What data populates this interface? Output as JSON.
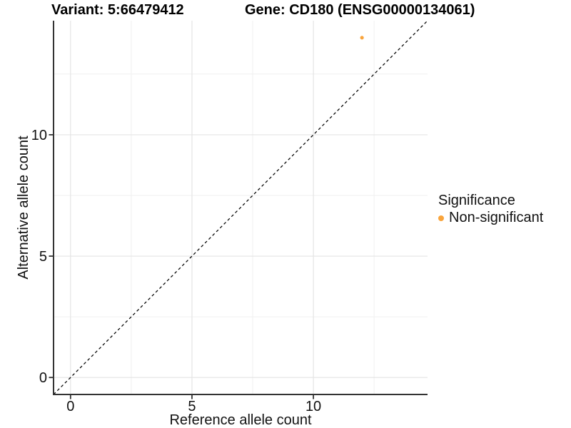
{
  "chart_data": {
    "type": "scatter",
    "title_left": "Variant: 5:66479412",
    "title_right": "Gene: CD180 (ENSG00000134061)",
    "xlabel": "Reference allele count",
    "ylabel": "Alternative allele count",
    "xlim": [
      -0.7,
      14.7
    ],
    "ylim": [
      -0.7,
      14.7
    ],
    "x_ticks": [
      0,
      5,
      10
    ],
    "y_ticks": [
      0,
      5,
      10
    ],
    "x_minor_gridlines": [
      2.5,
      7.5,
      12.5
    ],
    "y_minor_gridlines": [
      2.5,
      7.5,
      12.5
    ],
    "grid": "on",
    "points": [
      {
        "x": 12,
        "y": 14,
        "series": "Non-significant"
      }
    ],
    "reference_line": {
      "style": "dashed",
      "slope": 1,
      "intercept": 0
    },
    "legend": {
      "title": "Significance",
      "position": "right",
      "entries": [
        {
          "label": "Non-significant",
          "color": "#F9A43C"
        }
      ]
    },
    "colors": {
      "point": "#F9A43C",
      "axis_line": "#333333",
      "tick_mark": "#333333",
      "grid_major": "#E4E4E4",
      "grid_minor": "#F1F1F1",
      "reference_line": "#000000",
      "text": "#111111",
      "background": "#FFFFFF"
    }
  }
}
